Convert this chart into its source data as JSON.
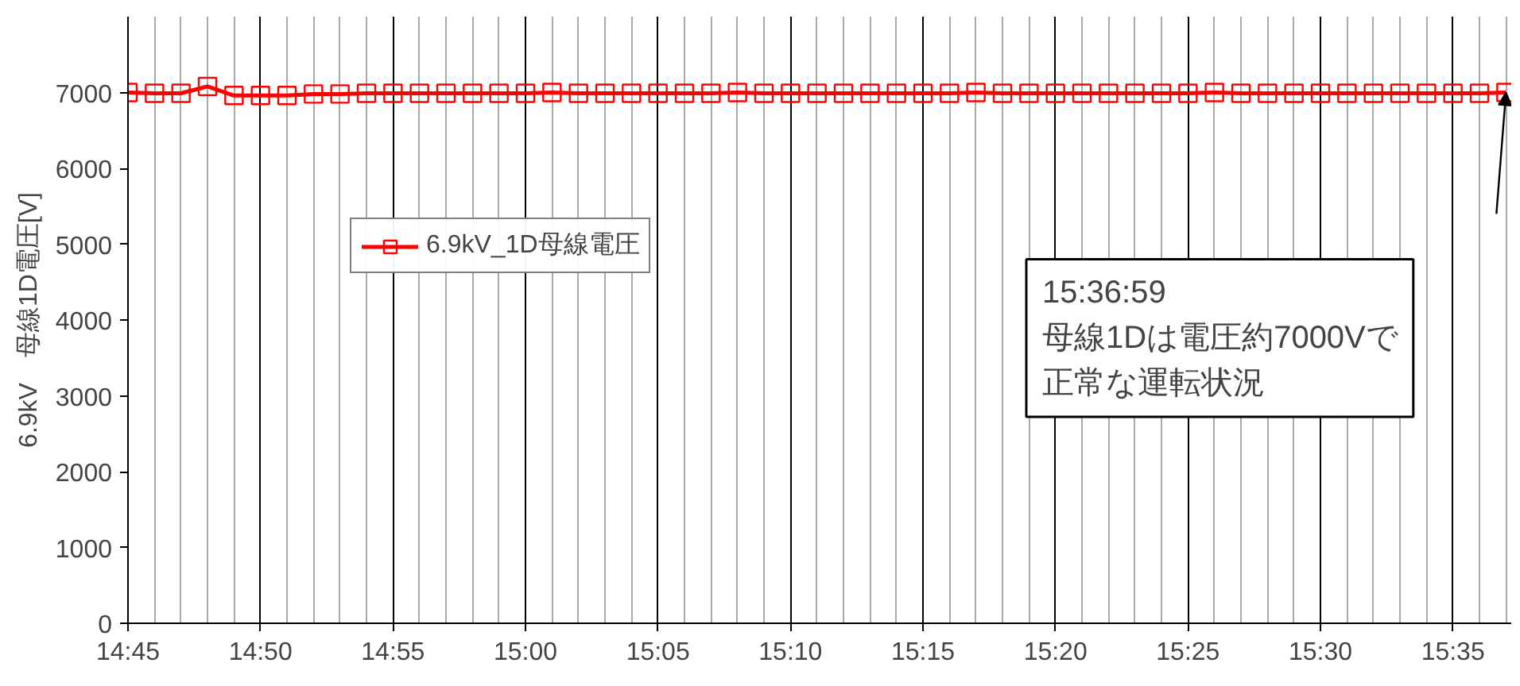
{
  "chart_data": {
    "type": "line",
    "ylabel": "6.9kV　母線1D電圧[V]",
    "x": [
      14.75,
      14.766667,
      14.783333,
      14.8,
      14.816667,
      14.833333,
      14.85,
      14.866667,
      14.883333,
      14.9,
      14.916667,
      14.933333,
      14.95,
      14.966667,
      14.983333,
      15.0,
      15.016667,
      15.033333,
      15.05,
      15.066667,
      15.083333,
      15.1,
      15.116667,
      15.133333,
      15.15,
      15.166667,
      15.183333,
      15.2,
      15.216667,
      15.233333,
      15.25,
      15.266667,
      15.283333,
      15.3,
      15.316667,
      15.333333,
      15.35,
      15.366667,
      15.383333,
      15.4,
      15.416667,
      15.433333,
      15.45,
      15.466667,
      15.483333,
      15.5,
      15.516667,
      15.533333,
      15.55,
      15.566667,
      15.583333,
      15.6,
      15.616667
    ],
    "series": [
      {
        "name": "6.9kV_1D母線電圧",
        "color": "#ff0000",
        "values": [
          7000,
          6990,
          6990,
          7080,
          6960,
          6960,
          6960,
          6980,
          6980,
          6990,
          6990,
          6990,
          6990,
          6990,
          6990,
          6990,
          7000,
          6990,
          6990,
          6990,
          6990,
          6990,
          6990,
          7000,
          6990,
          6990,
          6990,
          6990,
          6990,
          6990,
          6990,
          6990,
          7000,
          6990,
          6990,
          6990,
          6990,
          6990,
          6990,
          6990,
          6990,
          7000,
          6990,
          6990,
          6990,
          6990,
          6990,
          6990,
          6990,
          6990,
          6990,
          6990,
          7000
        ]
      }
    ],
    "xlim": [
      14.75,
      15.62
    ],
    "ylim": [
      0,
      8000
    ],
    "xticks": [
      {
        "value": 14.75,
        "label": "14:45"
      },
      {
        "value": 14.833333,
        "label": "14:50"
      },
      {
        "value": 14.916667,
        "label": "14:55"
      },
      {
        "value": 15.0,
        "label": "15:00"
      },
      {
        "value": 15.083333,
        "label": "15:05"
      },
      {
        "value": 15.166667,
        "label": "15:10"
      },
      {
        "value": 15.25,
        "label": "15:15"
      },
      {
        "value": 15.333333,
        "label": "15:20"
      },
      {
        "value": 15.416667,
        "label": "15:25"
      },
      {
        "value": 15.5,
        "label": "15:30"
      },
      {
        "value": 15.583333,
        "label": "15:35"
      }
    ],
    "yticks": [
      0,
      1000,
      2000,
      3000,
      4000,
      5000,
      6000,
      7000
    ],
    "grid": "x",
    "legend": "top left",
    "marker": "square",
    "line_style": "solid",
    "annotations": [
      "15:36:59",
      "母線1Dは電圧約7000Vで正常な運転状況"
    ]
  }
}
